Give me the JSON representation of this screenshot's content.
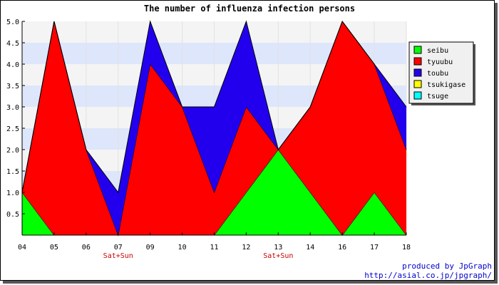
{
  "chart_data": {
    "type": "area",
    "stacked": true,
    "title": "The number of influenza infection persons",
    "xlabel": "",
    "ylabel": "",
    "categories": [
      "04",
      "05",
      "06",
      "07",
      "09",
      "10",
      "11",
      "12",
      "13",
      "14",
      "16",
      "17",
      "18"
    ],
    "ylim": [
      0,
      5
    ],
    "yticks": [
      "0.5",
      "1.0",
      "1.5",
      "2.0",
      "2.5",
      "3.0",
      "3.5",
      "4.0",
      "4.5",
      "5.0"
    ],
    "grid": "horizontal bands",
    "legend_position": "right",
    "series": [
      {
        "name": "seibu",
        "color": "#00ff00",
        "values": [
          1,
          0,
          0,
          0,
          0,
          0,
          0,
          1,
          2,
          1,
          0,
          1,
          0
        ]
      },
      {
        "name": "tyuubu",
        "color": "#ff0000",
        "values": [
          0,
          5,
          2,
          0,
          4,
          3,
          1,
          2,
          0,
          2,
          5,
          3,
          2
        ]
      },
      {
        "name": "toubu",
        "color": "#2200ee",
        "values": [
          0,
          0,
          0,
          1,
          1,
          0,
          2,
          2,
          0,
          0,
          0,
          0,
          1
        ]
      },
      {
        "name": "tsukigase",
        "color": "#ffff00",
        "values": [
          0,
          0,
          0,
          0,
          0,
          0,
          0,
          0,
          0,
          0,
          0,
          0,
          0
        ]
      },
      {
        "name": "tsuge",
        "color": "#00ffff",
        "values": [
          0,
          0,
          0,
          0,
          0,
          0,
          0,
          0,
          0,
          0,
          0,
          0,
          0
        ]
      }
    ],
    "annotations": [
      {
        "category": "07",
        "text": "Sat+Sun",
        "color": "#cc0000"
      },
      {
        "category": "13",
        "text": "Sat+Sun",
        "color": "#cc0000"
      }
    ]
  },
  "footer": {
    "line1": "produced by JpGraph",
    "line2": "http://asial.co.jp/jpgraph/"
  }
}
